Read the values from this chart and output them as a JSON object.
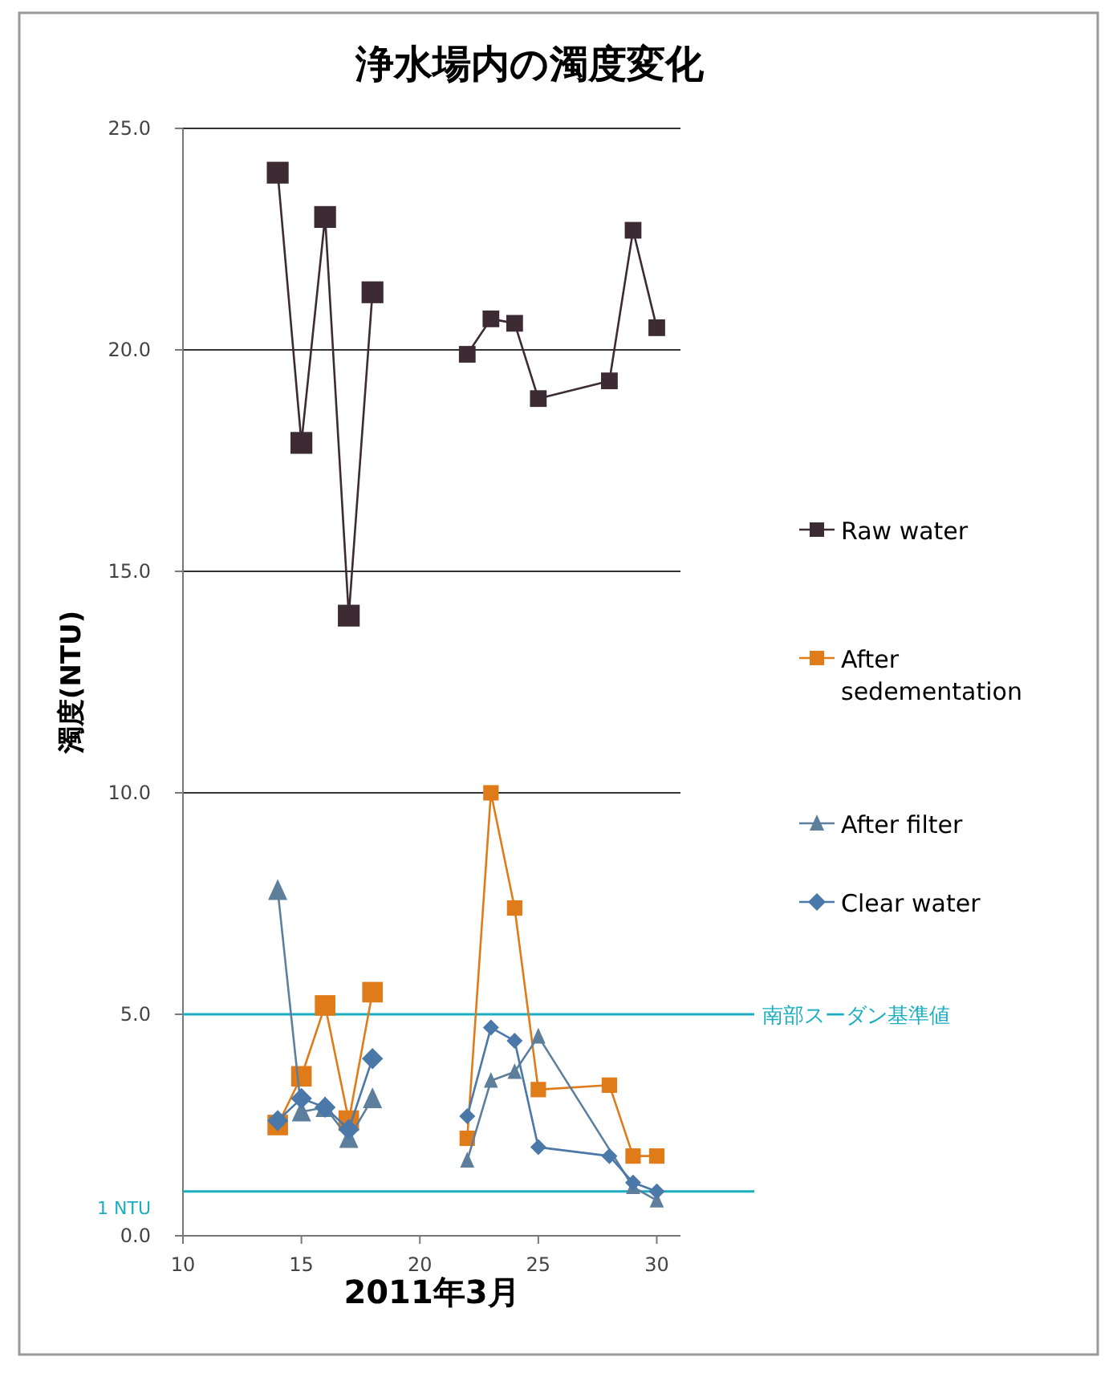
{
  "chart_data": {
    "type": "line",
    "title": "浄水場内の濁度変化",
    "xlabel": "2011年3月",
    "ylabel": "濁度(NTU)",
    "x": [
      14,
      15,
      16,
      17,
      18
    ],
    "xlim": [
      10,
      31
    ],
    "xticks": [
      10,
      15,
      20,
      25,
      30
    ],
    "ylim": [
      0,
      25
    ],
    "yticks": [
      {
        "value": 0,
        "label": "0.0"
      },
      {
        "value": 5,
        "label": "5.0"
      },
      {
        "value": 10,
        "label": "10.0"
      },
      {
        "value": 15,
        "label": "15.0"
      },
      {
        "value": 20,
        "label": "20.0"
      },
      {
        "value": 25,
        "label": "25.0"
      }
    ],
    "grid": "y",
    "legend": "right",
    "series": [
      {
        "name": "Raw water",
        "color": "#3d2b33",
        "marker": "square",
        "values": [
          24.0,
          17.9,
          23.0,
          14.0,
          21.3
        ]
      },
      {
        "name": "After sedementation",
        "color": "#e07b1a",
        "marker": "square",
        "values": [
          2.5,
          3.6,
          5.2,
          2.6,
          5.5
        ]
      },
      {
        "name": "After filter",
        "color": "#5d7f9c",
        "marker": "triangle",
        "values": [
          7.8,
          2.8,
          2.9,
          2.2,
          3.1
        ]
      },
      {
        "name": "Clear water",
        "color": "#4a78a8",
        "marker": "diamond",
        "values": [
          2.6,
          3.1,
          2.9,
          2.4,
          4.0
        ]
      },
      {
        "color": "#3d2b33",
        "marker": "square",
        "x": [
          22,
          23,
          24,
          25,
          28,
          29,
          30
        ],
        "values": [
          19.9,
          20.7,
          20.6,
          18.9,
          19.3,
          22.7,
          20.5
        ]
      },
      {
        "color": "#e07b1a",
        "marker": "square",
        "x": [
          22,
          23,
          24,
          25,
          28,
          29,
          30
        ],
        "values": [
          2.2,
          10.0,
          7.4,
          3.3,
          3.4,
          1.8,
          1.8
        ]
      },
      {
        "color": "#5d7f9c",
        "marker": "triangle",
        "x": [
          22,
          23,
          24,
          25,
          29,
          30
        ],
        "values": [
          1.7,
          3.5,
          3.7,
          4.5,
          1.1,
          0.8
        ]
      },
      {
        "color": "#4a78a8",
        "marker": "diamond",
        "x": [
          22,
          23,
          24,
          25,
          28,
          29,
          30
        ],
        "values": [
          2.7,
          4.7,
          4.4,
          2.0,
          1.8,
          1.2,
          1.0
        ]
      }
    ],
    "ref_lines": [
      {
        "axis": "y",
        "value": 5,
        "label": "南部スーダン基準値",
        "color": "#1aaec0"
      },
      {
        "axis": "y",
        "value": 1,
        "label": "1 NTU",
        "color": "#1aaec0"
      }
    ]
  }
}
